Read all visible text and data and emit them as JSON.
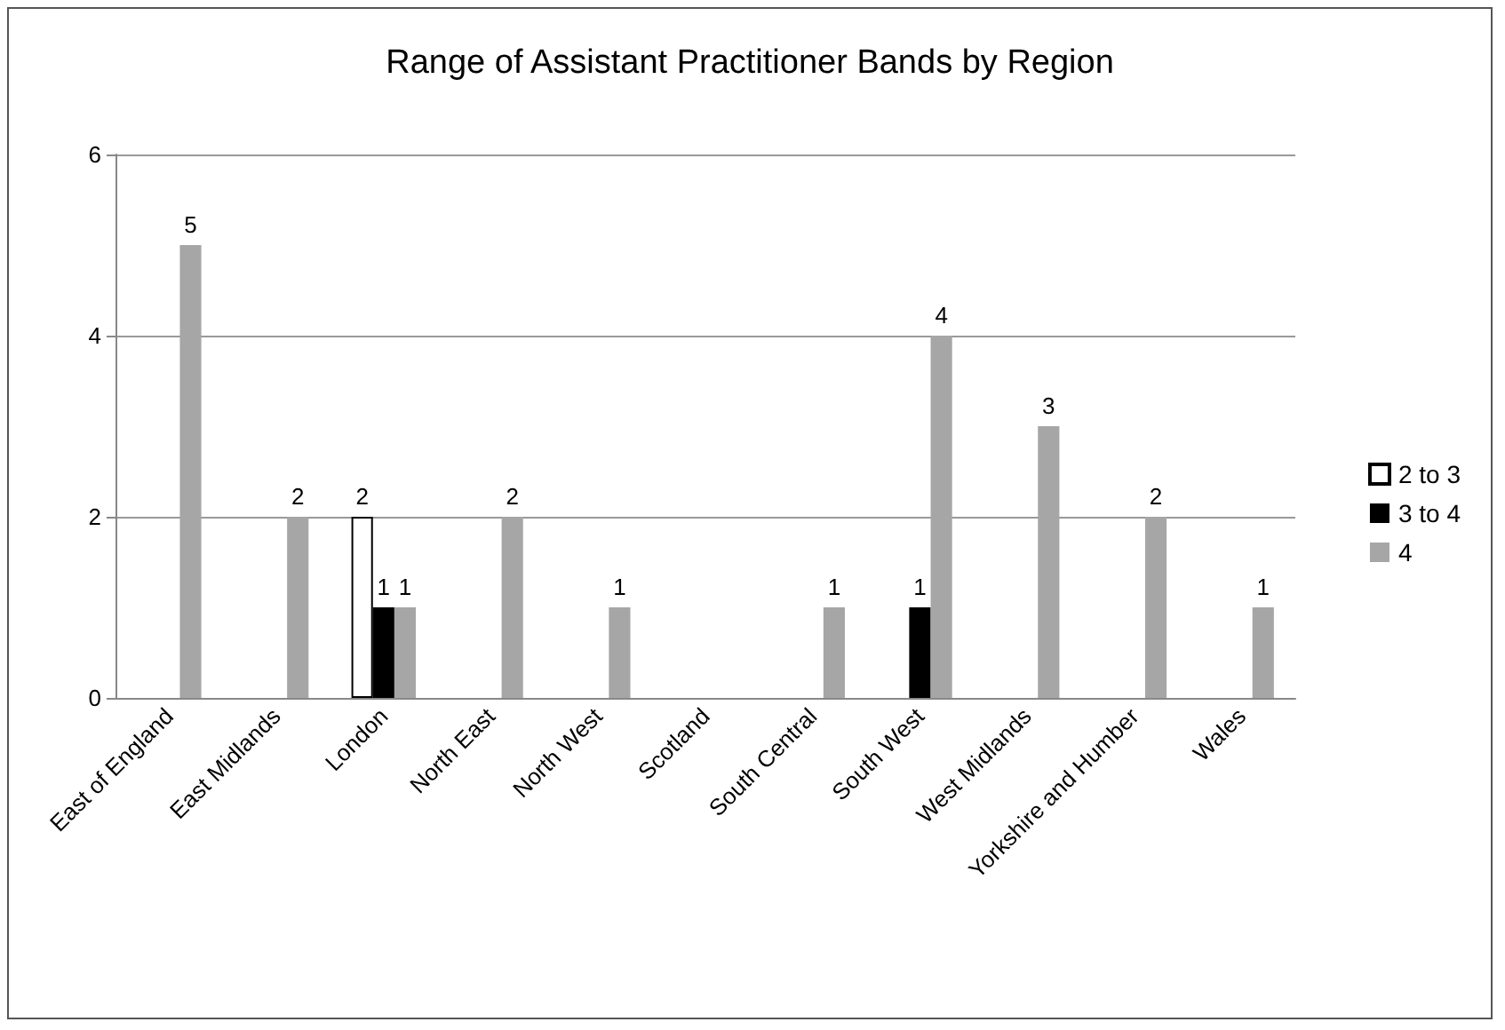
{
  "chart_data": {
    "type": "bar",
    "title": "Range of Assistant Practitioner Bands by Region",
    "categories": [
      "East of England",
      "East Midlands",
      "London",
      "North East",
      "North West",
      "Scotland",
      "South Central",
      "South West",
      "West Midlands",
      "Yorkshire and Humber",
      "Wales"
    ],
    "series": [
      {
        "name": "2 to 3",
        "color": "#ffffff",
        "values": [
          null,
          null,
          2,
          null,
          null,
          null,
          null,
          null,
          null,
          null,
          null
        ]
      },
      {
        "name": "3 to 4",
        "color": "#000000",
        "values": [
          null,
          null,
          1,
          null,
          null,
          null,
          null,
          1,
          null,
          null,
          null
        ]
      },
      {
        "name": "4",
        "color": "#a6a6a6",
        "values": [
          5,
          2,
          1,
          2,
          1,
          null,
          1,
          4,
          3,
          2,
          1
        ]
      }
    ],
    "ylim": [
      0,
      6
    ],
    "yticks": [
      0,
      2,
      4,
      6
    ],
    "grid": "y",
    "legend": "right",
    "data_labels": true
  }
}
